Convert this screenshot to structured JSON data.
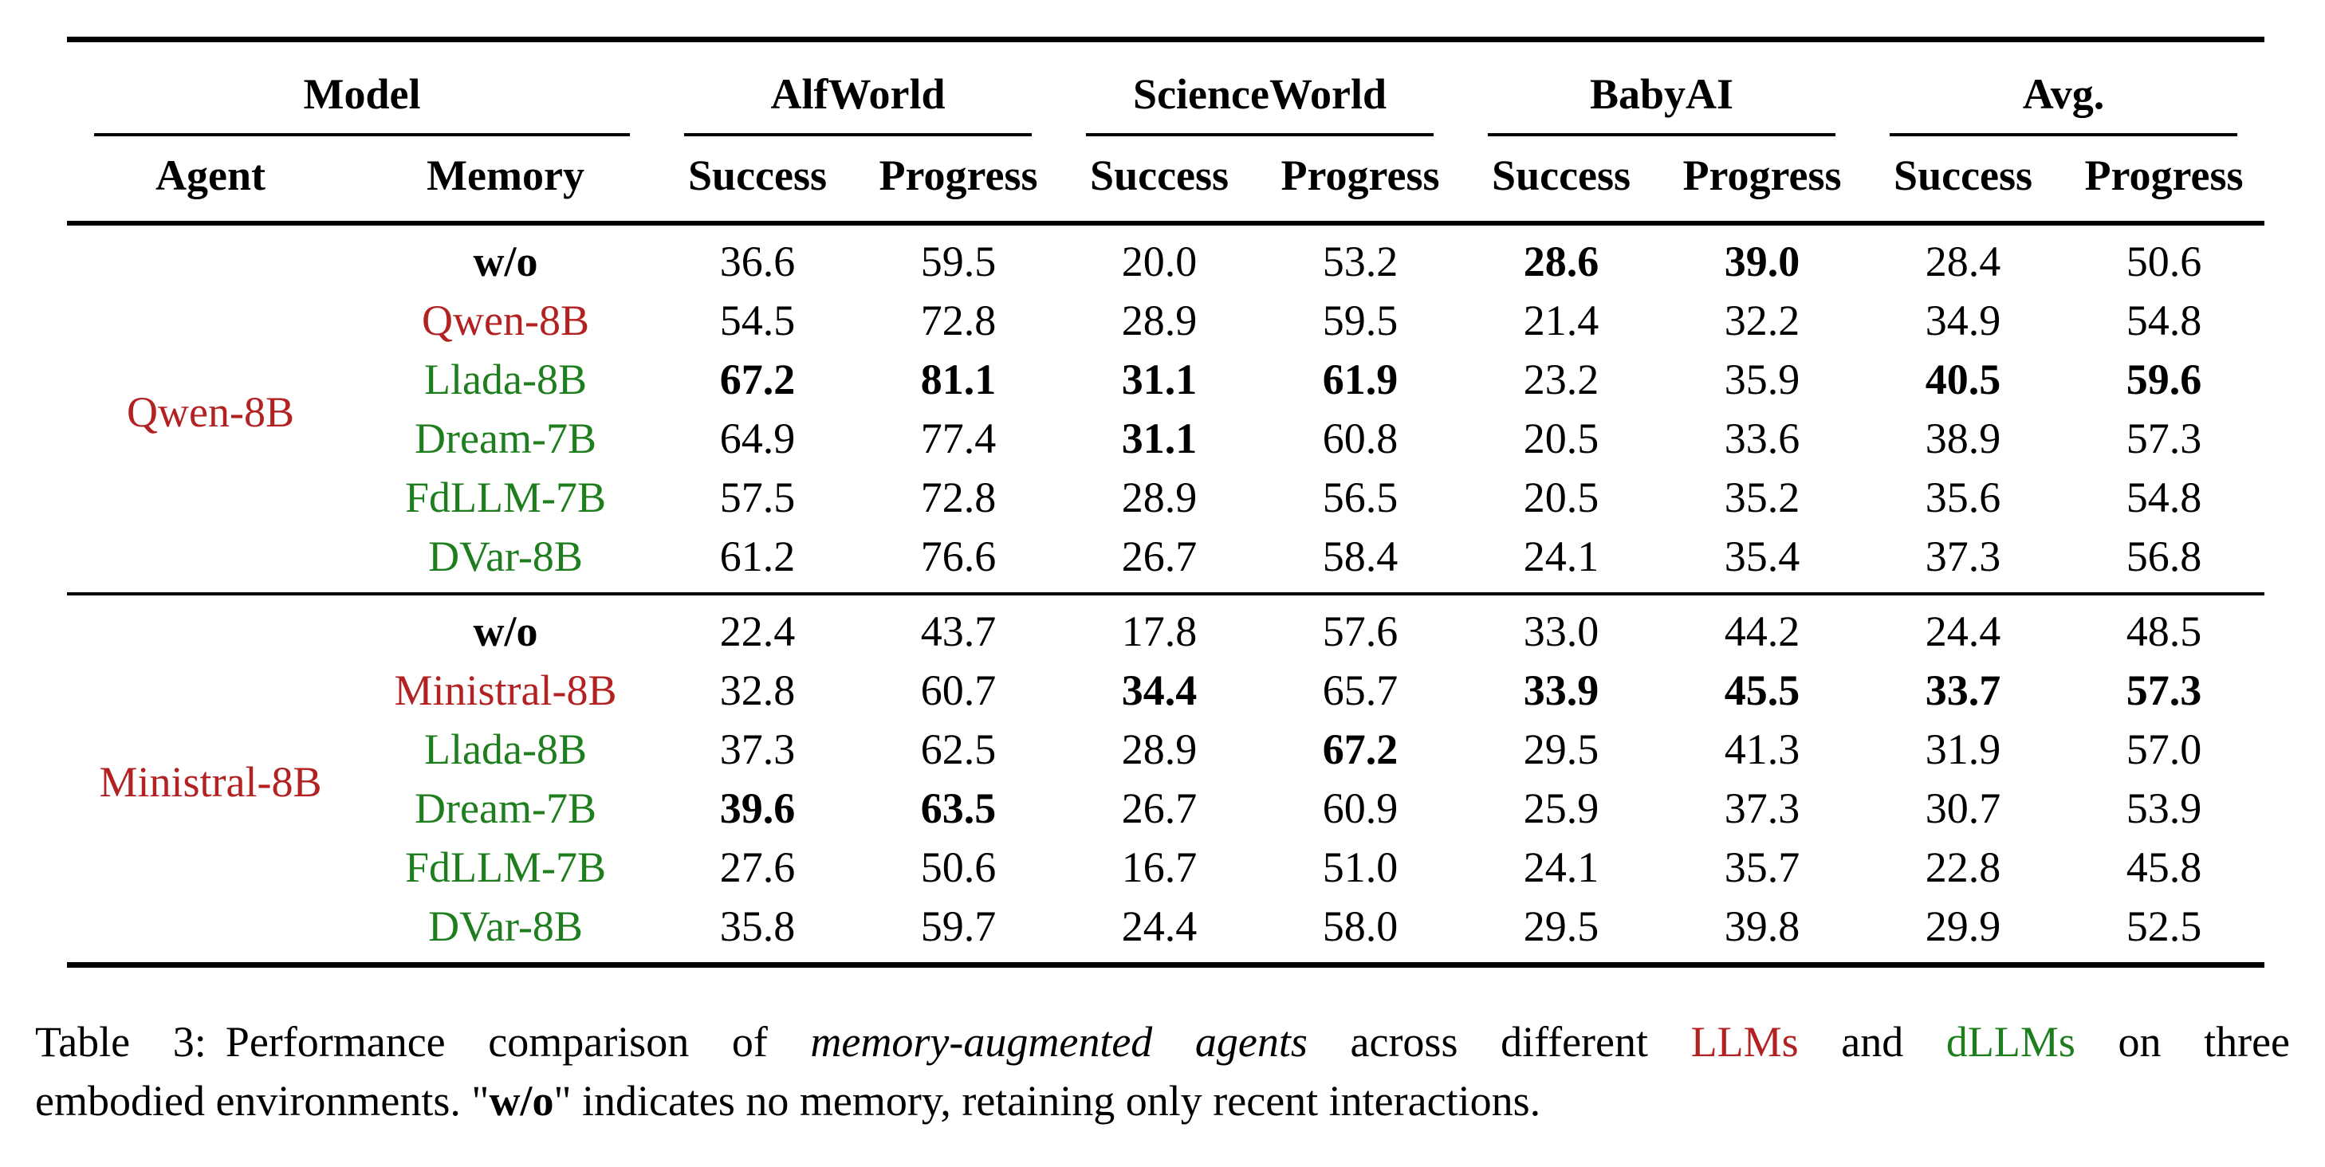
{
  "colors": {
    "red": "#b22222",
    "green": "#1e7e1e",
    "text": "#000000",
    "background": "#ffffff"
  },
  "table": {
    "groups": [
      {
        "label": "Model"
      },
      {
        "label": "AlfWorld"
      },
      {
        "label": "ScienceWorld"
      },
      {
        "label": "BabyAI"
      },
      {
        "label": "Avg."
      }
    ],
    "subheaders": [
      "Agent",
      "Memory",
      "Success",
      "Progress",
      "Success",
      "Progress",
      "Success",
      "Progress",
      "Success",
      "Progress"
    ],
    "sections": [
      {
        "agent": "Qwen-8B",
        "agent_color": "red",
        "rows": [
          {
            "memory": "w/o",
            "memory_style": "wo",
            "values": [
              "36.6",
              "59.5",
              "20.0",
              "53.2",
              "28.6",
              "39.0",
              "28.4",
              "50.6"
            ],
            "bold": [
              0,
              0,
              0,
              0,
              1,
              1,
              0,
              0
            ]
          },
          {
            "memory": "Qwen-8B",
            "memory_style": "llm",
            "values": [
              "54.5",
              "72.8",
              "28.9",
              "59.5",
              "21.4",
              "32.2",
              "34.9",
              "54.8"
            ],
            "bold": [
              0,
              0,
              0,
              0,
              0,
              0,
              0,
              0
            ]
          },
          {
            "memory": "Llada-8B",
            "memory_style": "dllm",
            "values": [
              "67.2",
              "81.1",
              "31.1",
              "61.9",
              "23.2",
              "35.9",
              "40.5",
              "59.6"
            ],
            "bold": [
              1,
              1,
              1,
              1,
              0,
              0,
              1,
              1
            ]
          },
          {
            "memory": "Dream-7B",
            "memory_style": "dllm",
            "values": [
              "64.9",
              "77.4",
              "31.1",
              "60.8",
              "20.5",
              "33.6",
              "38.9",
              "57.3"
            ],
            "bold": [
              0,
              0,
              1,
              0,
              0,
              0,
              0,
              0
            ]
          },
          {
            "memory": "FdLLM-7B",
            "memory_style": "dllm",
            "values": [
              "57.5",
              "72.8",
              "28.9",
              "56.5",
              "20.5",
              "35.2",
              "35.6",
              "54.8"
            ],
            "bold": [
              0,
              0,
              0,
              0,
              0,
              0,
              0,
              0
            ]
          },
          {
            "memory": "DVar-8B",
            "memory_style": "dllm",
            "values": [
              "61.2",
              "76.6",
              "26.7",
              "58.4",
              "24.1",
              "35.4",
              "37.3",
              "56.8"
            ],
            "bold": [
              0,
              0,
              0,
              0,
              0,
              0,
              0,
              0
            ]
          }
        ]
      },
      {
        "agent": "Ministral-8B",
        "agent_color": "red",
        "rows": [
          {
            "memory": "w/o",
            "memory_style": "wo",
            "values": [
              "22.4",
              "43.7",
              "17.8",
              "57.6",
              "33.0",
              "44.2",
              "24.4",
              "48.5"
            ],
            "bold": [
              0,
              0,
              0,
              0,
              0,
              0,
              0,
              0
            ]
          },
          {
            "memory": "Ministral-8B",
            "memory_style": "llm",
            "values": [
              "32.8",
              "60.7",
              "34.4",
              "65.7",
              "33.9",
              "45.5",
              "33.7",
              "57.3"
            ],
            "bold": [
              0,
              0,
              1,
              0,
              1,
              1,
              1,
              1
            ]
          },
          {
            "memory": "Llada-8B",
            "memory_style": "dllm",
            "values": [
              "37.3",
              "62.5",
              "28.9",
              "67.2",
              "29.5",
              "41.3",
              "31.9",
              "57.0"
            ],
            "bold": [
              0,
              0,
              0,
              1,
              0,
              0,
              0,
              0
            ]
          },
          {
            "memory": "Dream-7B",
            "memory_style": "dllm",
            "values": [
              "39.6",
              "63.5",
              "26.7",
              "60.9",
              "25.9",
              "37.3",
              "30.7",
              "53.9"
            ],
            "bold": [
              1,
              1,
              0,
              0,
              0,
              0,
              0,
              0
            ]
          },
          {
            "memory": "FdLLM-7B",
            "memory_style": "dllm",
            "values": [
              "27.6",
              "50.6",
              "16.7",
              "51.0",
              "24.1",
              "35.7",
              "22.8",
              "45.8"
            ],
            "bold": [
              0,
              0,
              0,
              0,
              0,
              0,
              0,
              0
            ]
          },
          {
            "memory": "DVar-8B",
            "memory_style": "dllm",
            "values": [
              "35.8",
              "59.7",
              "24.4",
              "58.0",
              "29.5",
              "39.8",
              "29.9",
              "52.5"
            ],
            "bold": [
              0,
              0,
              0,
              0,
              0,
              0,
              0,
              0
            ]
          }
        ]
      }
    ]
  },
  "caption": {
    "lines": [
      {
        "segments": [
          {
            "text": "Table 3:",
            "style": "prefix"
          },
          {
            "text": "Performance comparison of ",
            "style": "plain"
          },
          {
            "text": "memory-augmented agents",
            "style": "italic"
          },
          {
            "text": " across different ",
            "style": "plain"
          },
          {
            "text": "LLMs",
            "style": "red"
          },
          {
            "text": " and ",
            "style": "plain"
          },
          {
            "text": "dLLMs",
            "style": "green"
          },
          {
            "text": " on three",
            "style": "plain"
          }
        ]
      },
      {
        "segments": [
          {
            "text": "embodied environments. \"",
            "style": "plain"
          },
          {
            "text": "w/o",
            "style": "bold"
          },
          {
            "text": "\" indicates no memory, retaining only recent interactions.",
            "style": "plain"
          }
        ]
      }
    ]
  }
}
